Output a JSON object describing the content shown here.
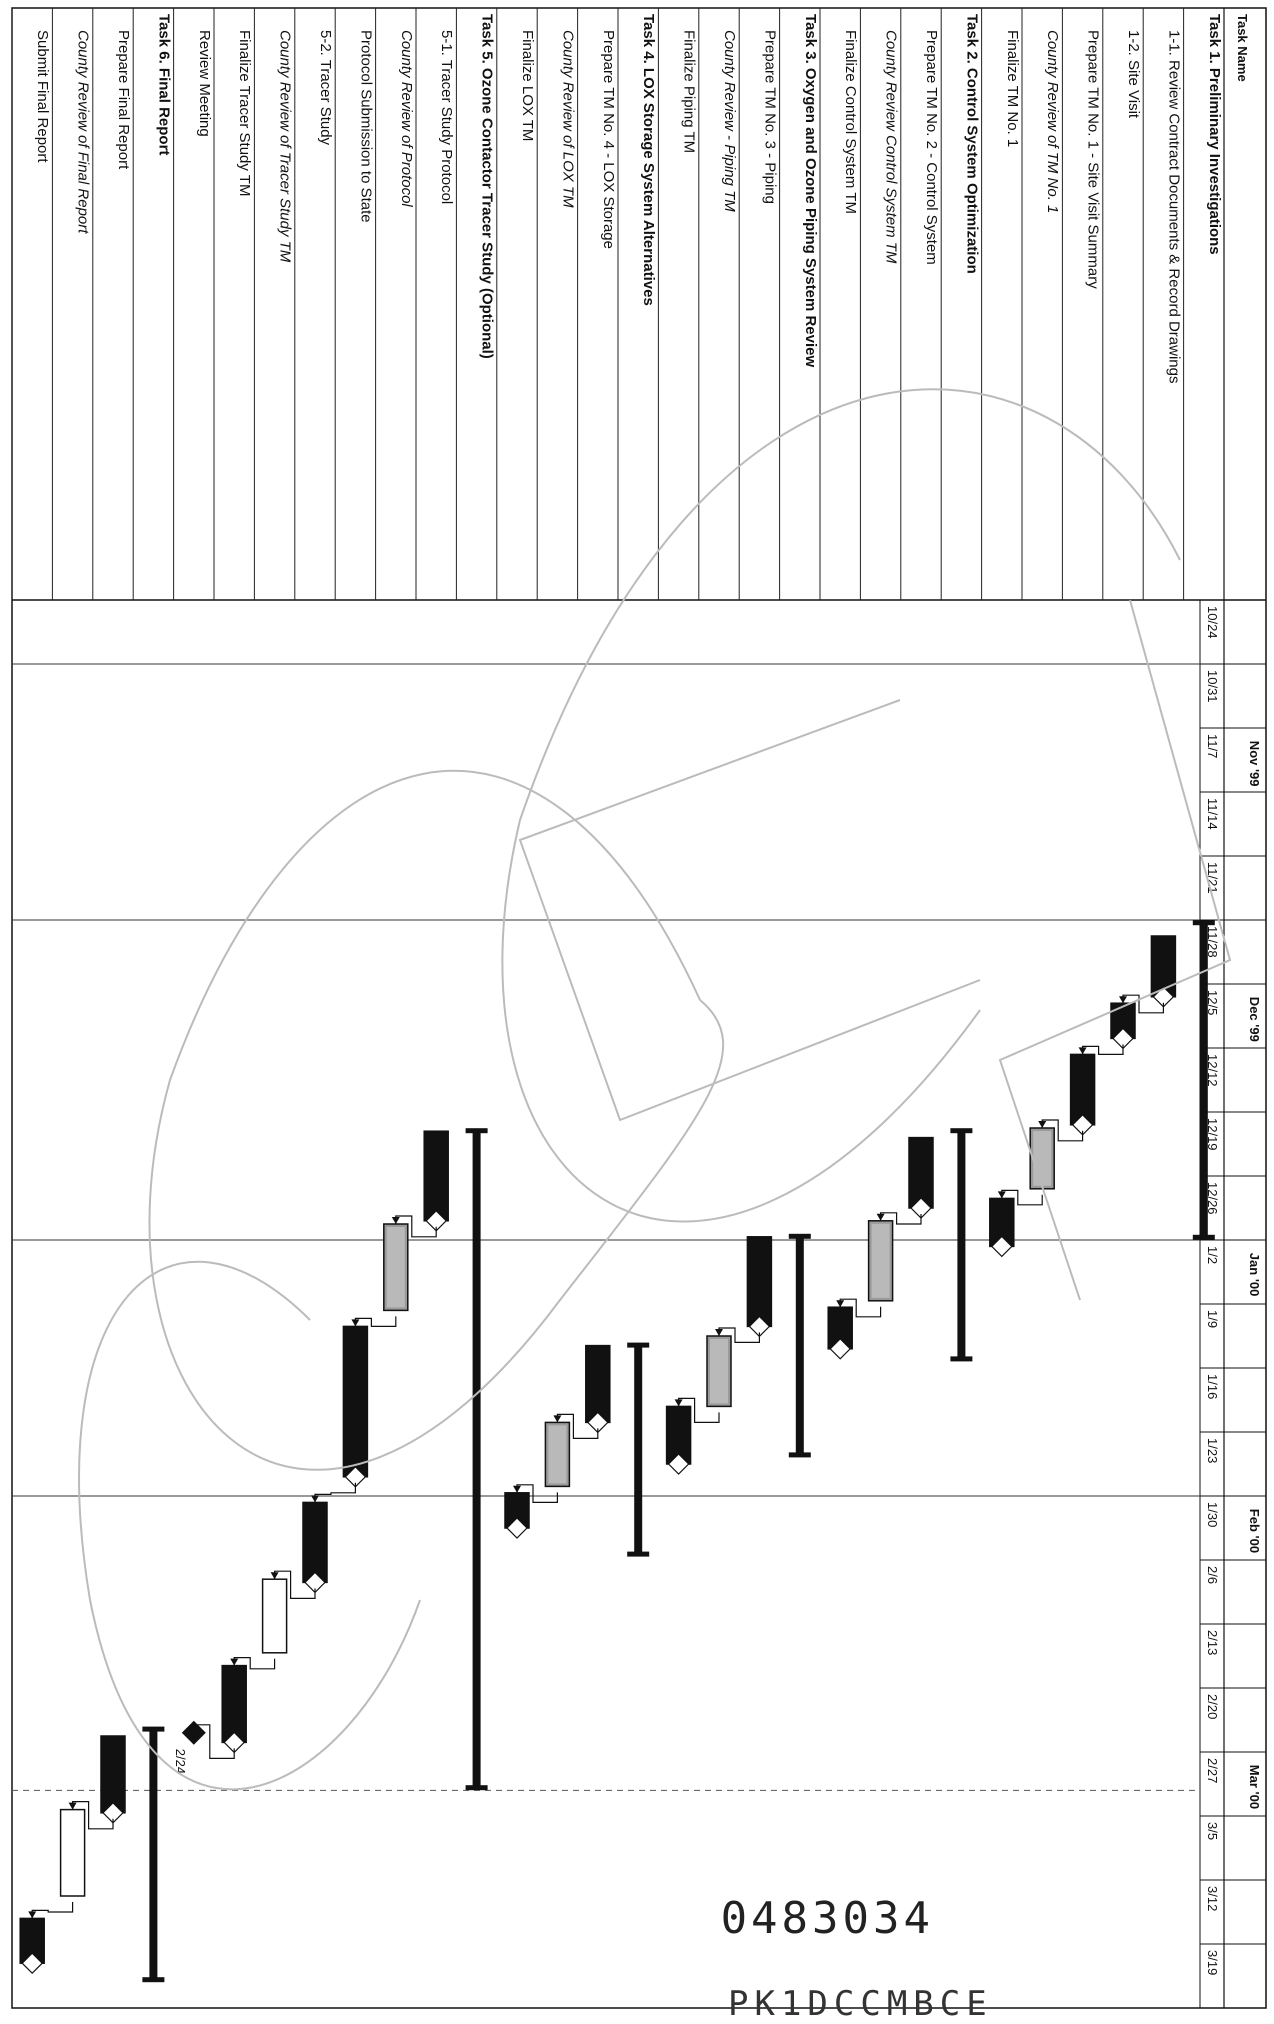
{
  "header": {
    "column_label": "Task Name"
  },
  "timeline": {
    "months": [
      "Nov '99",
      "Dec '99",
      "Jan '00",
      "Feb '00",
      "Mar '00"
    ],
    "weeks": [
      "10/24",
      "10/31",
      "11/7",
      "11/14",
      "11/21",
      "11/28",
      "12/5",
      "12/12",
      "12/19",
      "12/26",
      "1/2",
      "1/9",
      "1/16",
      "1/23",
      "1/30",
      "2/6",
      "2/13",
      "2/20",
      "2/27",
      "3/5",
      "3/12",
      "3/19"
    ]
  },
  "tasks": [
    {
      "name": "Task 1. Preliminary Investigations",
      "style": "summary"
    },
    {
      "name": "1-1. Review Contract Documents & Record Drawings",
      "style": "normal"
    },
    {
      "name": "1-2. Site Visit",
      "style": "normal"
    },
    {
      "name": "Prepare TM No. 1 - Site Visit Summary",
      "style": "normal"
    },
    {
      "name": "County Review of TM No. 1",
      "style": "italic"
    },
    {
      "name": "Finalize TM No. 1",
      "style": "normal"
    },
    {
      "name": "Task 2. Control System Optimization",
      "style": "summary"
    },
    {
      "name": "Prepare TM No. 2 - Control System",
      "style": "normal"
    },
    {
      "name": "County Review Control System TM",
      "style": "italic"
    },
    {
      "name": "Finalize Control System TM",
      "style": "normal"
    },
    {
      "name": "Task 3. Oxygen and Ozone Piping System Review",
      "style": "summary"
    },
    {
      "name": "Prepare TM No. 3 - Piping",
      "style": "normal"
    },
    {
      "name": "County Review - Piping TM",
      "style": "italic"
    },
    {
      "name": "Finalize Piping TM",
      "style": "normal"
    },
    {
      "name": "Task 4. LOX Storage System Alternatives",
      "style": "summary"
    },
    {
      "name": "Prepare TM No. 4 - LOX Storage",
      "style": "normal"
    },
    {
      "name": "County Review of LOX TM",
      "style": "italic"
    },
    {
      "name": "Finalize LOX TM",
      "style": "normal"
    },
    {
      "name": "Task 5. Ozone Contactor Tracer Study (Optional)",
      "style": "summary"
    },
    {
      "name": "5-1. Tracer Study Protocol",
      "style": "normal"
    },
    {
      "name": "County Review of Protocol",
      "style": "italic"
    },
    {
      "name": "Protocol Submission to State",
      "style": "normal"
    },
    {
      "name": "5-2. Tracer Study",
      "style": "normal"
    },
    {
      "name": "County Review of Tracer Study TM",
      "style": "italic"
    },
    {
      "name": "Finalize Tracer Study TM",
      "style": "normal"
    },
    {
      "name": "Review Meeting",
      "style": "normal"
    },
    {
      "name": "Task 6. Final Report",
      "style": "summary"
    },
    {
      "name": "Prepare Final Report",
      "style": "normal"
    },
    {
      "name": "County Review of Final Report",
      "style": "italic"
    },
    {
      "name": "Submit Final Report",
      "style": "normal"
    }
  ],
  "bars": [
    {
      "row": 0,
      "kind": "summary",
      "start_week": 5.05,
      "end_week": 9.95
    },
    {
      "row": 1,
      "kind": "task",
      "start_week": 5.25,
      "end_week": 6.2
    },
    {
      "row": 2,
      "kind": "task",
      "start_week": 6.3,
      "end_week": 6.85
    },
    {
      "row": 3,
      "kind": "task",
      "start_week": 7.1,
      "end_week": 8.2
    },
    {
      "row": 4,
      "kind": "review",
      "start_week": 8.25,
      "end_week": 9.2
    },
    {
      "row": 5,
      "kind": "task",
      "start_week": 9.35,
      "end_week": 10.1
    },
    {
      "row": 6,
      "kind": "summary",
      "start_week": 8.3,
      "end_week": 11.85
    },
    {
      "row": 7,
      "kind": "task",
      "start_week": 8.4,
      "end_week": 9.5
    },
    {
      "row": 8,
      "kind": "review",
      "start_week": 9.7,
      "end_week": 10.95
    },
    {
      "row": 9,
      "kind": "task",
      "start_week": 11.05,
      "end_week": 11.7
    },
    {
      "row": 10,
      "kind": "summary",
      "start_week": 9.95,
      "end_week": 13.35
    },
    {
      "row": 11,
      "kind": "task",
      "start_week": 9.95,
      "end_week": 11.35
    },
    {
      "row": 12,
      "kind": "review",
      "start_week": 11.5,
      "end_week": 12.6
    },
    {
      "row": 13,
      "kind": "task",
      "start_week": 12.6,
      "end_week": 13.5
    },
    {
      "row": 14,
      "kind": "summary",
      "start_week": 11.65,
      "end_week": 14.9
    },
    {
      "row": 15,
      "kind": "task",
      "start_week": 11.65,
      "end_week": 12.85
    },
    {
      "row": 16,
      "kind": "review",
      "start_week": 12.85,
      "end_week": 13.85
    },
    {
      "row": 17,
      "kind": "task",
      "start_week": 13.95,
      "end_week": 14.5
    },
    {
      "row": 18,
      "kind": "summary",
      "start_week": 8.3,
      "end_week": 18.55
    },
    {
      "row": 19,
      "kind": "task",
      "start_week": 8.3,
      "end_week": 9.7
    },
    {
      "row": 20,
      "kind": "review",
      "start_week": 9.75,
      "end_week": 11.1
    },
    {
      "row": 21,
      "kind": "task",
      "start_week": 11.35,
      "end_week": 13.7
    },
    {
      "row": 22,
      "kind": "task",
      "start_week": 14.1,
      "end_week": 15.35
    },
    {
      "row": 23,
      "kind": "open",
      "start_week": 15.3,
      "end_week": 16.45
    },
    {
      "row": 24,
      "kind": "task",
      "start_week": 16.65,
      "end_week": 17.85
    },
    {
      "row": 25,
      "kind": "milestone",
      "start_week": 17.7,
      "end_week": 17.7,
      "label": "2/24"
    },
    {
      "row": 26,
      "kind": "summary",
      "start_week": 17.65,
      "end_week": 21.55
    },
    {
      "row": 27,
      "kind": "task",
      "start_week": 17.75,
      "end_week": 18.95
    },
    {
      "row": 28,
      "kind": "open",
      "start_week": 18.9,
      "end_week": 20.25
    },
    {
      "row": 29,
      "kind": "task",
      "start_week": 20.6,
      "end_week": 21.3
    }
  ],
  "stamps": {
    "document_number": "0483034",
    "page_code": "PK1DCCMBCE"
  }
}
